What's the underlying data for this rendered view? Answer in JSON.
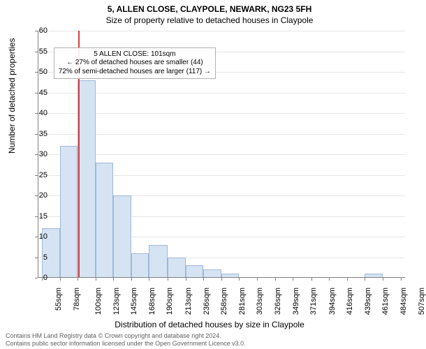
{
  "header": {
    "title": "5, ALLEN CLOSE, CLAYPOLE, NEWARK, NG23 5FH",
    "subtitle": "Size of property relative to detached houses in Claypole"
  },
  "chart": {
    "type": "histogram",
    "ylabel": "Number of detached properties",
    "xlabel": "Distribution of detached houses by size in Claypole",
    "background_color": "#ffffff",
    "grid_color": "#e6e6e6",
    "axis_color": "#808080",
    "label_fontsize": 12,
    "tick_fontsize": 11,
    "ylim": [
      0,
      60
    ],
    "ytick_step": 5,
    "xticks": [
      55,
      78,
      100,
      123,
      145,
      168,
      190,
      213,
      236,
      258,
      281,
      303,
      326,
      349,
      371,
      394,
      416,
      439,
      461,
      484,
      507
    ],
    "xlim": [
      50,
      512
    ],
    "xtick_suffix": "sqm",
    "bars": {
      "bin_edges": [
        55,
        78,
        100,
        123,
        145,
        168,
        190,
        213,
        236,
        258,
        281,
        303,
        326,
        349,
        371,
        394,
        416,
        439,
        461,
        484,
        507
      ],
      "counts": [
        12,
        32,
        48,
        28,
        20,
        6,
        8,
        5,
        3,
        2,
        1,
        0,
        0,
        0,
        0,
        0,
        0,
        0,
        1,
        0,
        0
      ],
      "fill_color": "#d6e3f3",
      "edge_color": "#9fb8d9",
      "edge_width": 1
    },
    "marker": {
      "x": 101,
      "color": "#d84040",
      "width": 1.5
    },
    "annotation": {
      "lines": [
        "5 ALLEN CLOSE: 101sqm",
        "← 27% of detached houses are smaller (44)",
        "72% of semi-detached houses are larger (117) →"
      ],
      "border_color": "#b0b0b0",
      "bg_color": "rgba(255,255,255,0.9)",
      "fontsize": 10,
      "x": 70,
      "y_top": 56
    }
  },
  "attribution": {
    "line1": "Contains HM Land Registry data © Crown copyright and database right 2024.",
    "line2": "Contains public sector information licensed under the Open Government Licence v3.0."
  }
}
